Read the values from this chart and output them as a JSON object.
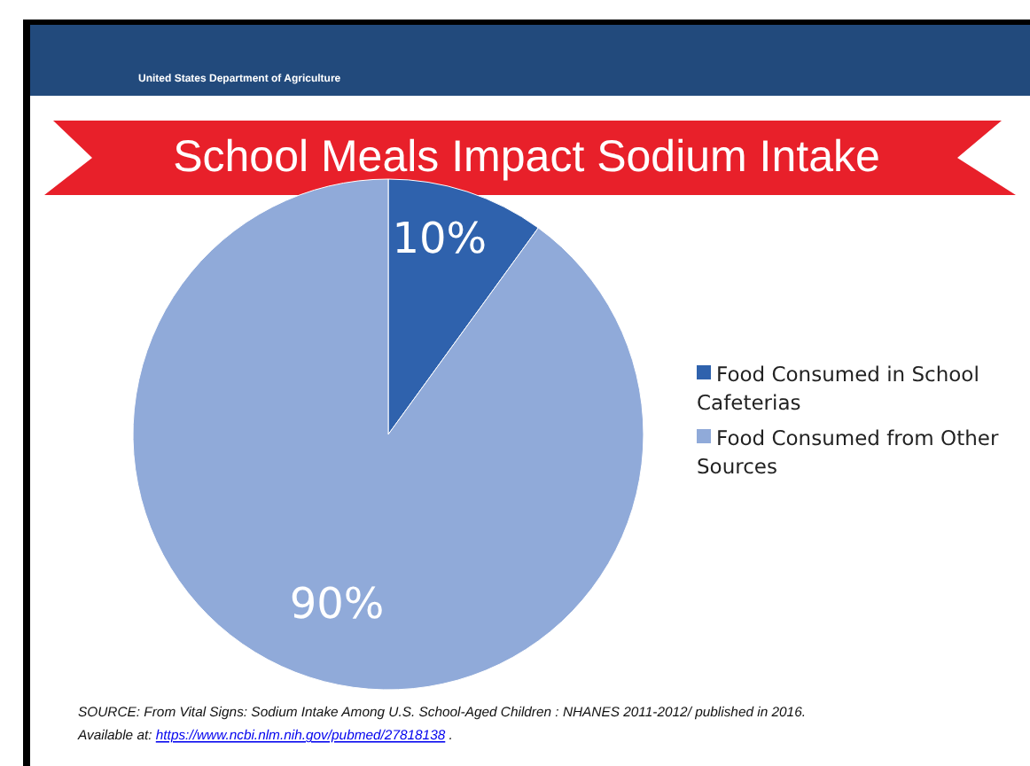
{
  "chart_data": {
    "type": "pie",
    "title": "School Meals Impact Sodium Intake",
    "categories": [
      "Food Consumed in School Cafeterias",
      "Food Consumed from Other Sources"
    ],
    "values": [
      10,
      90
    ],
    "colors": [
      "#2f62ad",
      "#90aad9"
    ],
    "value_labels": [
      "10%",
      "90%"
    ],
    "legend": "right",
    "annotations": [
      "United States Department of Agriculture",
      "SOURCE: From Vital Signs: Sodium Intake Among U.S. School-Aged Children : NHANES 2011-2012/  published in 2016.",
      "Available at: https://www.ncbi.nlm.nih.gov/pubmed/27818138 ."
    ]
  }
}
